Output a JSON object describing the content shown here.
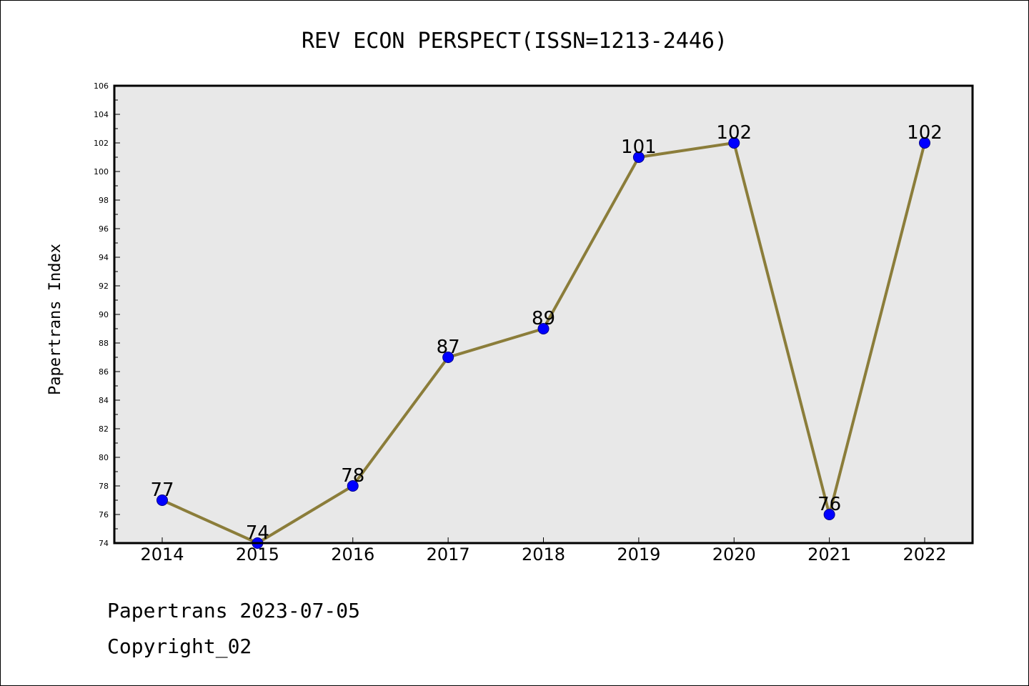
{
  "chart_data": {
    "type": "line",
    "title": "REV ECON PERSPECT(ISSN=1213-2446)",
    "xlabel": "",
    "ylabel": "Papertrans Index",
    "categories": [
      "2014",
      "2015",
      "2016",
      "2017",
      "2018",
      "2019",
      "2020",
      "2021",
      "2022"
    ],
    "series": [
      {
        "values": [
          77,
          74,
          78,
          87,
          89,
          101,
          102,
          76,
          102
        ]
      }
    ],
    "data_labels": [
      "77",
      "74",
      "78",
      "87",
      "89",
      "101",
      "102",
      "76",
      "102"
    ],
    "ylim": [
      74,
      106
    ],
    "yticks": [
      "74",
      "76",
      "78",
      "80",
      "82",
      "84",
      "86",
      "88",
      "90",
      "92",
      "94",
      "96",
      "98",
      "100",
      "102",
      "104",
      "106"
    ],
    "grid": false,
    "colors": {
      "line": "#8b7d3a",
      "marker": "#0000ff",
      "plot_background": "#e8e8e8"
    }
  },
  "footer": {
    "line1": "Papertrans 2023-07-05",
    "line2": "Copyright_02"
  }
}
